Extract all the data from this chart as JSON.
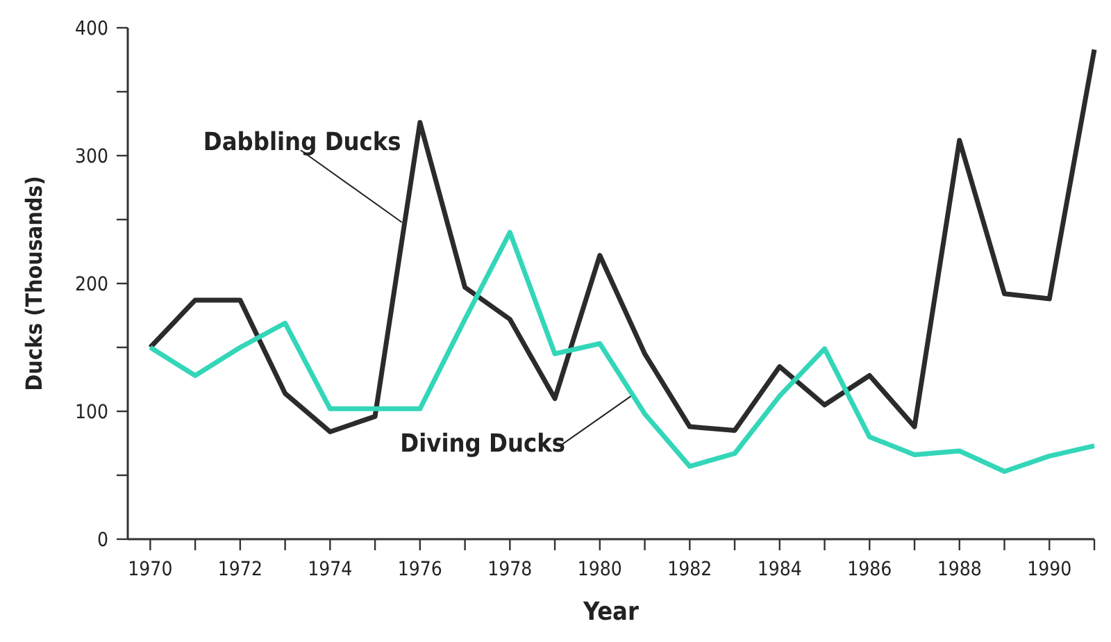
{
  "chart_data": {
    "type": "line",
    "xlabel": "Year",
    "ylabel": "Ducks (Thousands)",
    "x": [
      1970,
      1971,
      1972,
      1973,
      1974,
      1975,
      1976,
      1977,
      1978,
      1979,
      1980,
      1981,
      1982,
      1983,
      1984,
      1985,
      1986,
      1987,
      1988,
      1989,
      1990,
      1991
    ],
    "series": [
      {
        "name": "Dabbling Ducks",
        "color": "#2b2b2b",
        "values": [
          150,
          187,
          187,
          114,
          84,
          96,
          326,
          197,
          172,
          110,
          222,
          145,
          88,
          85,
          135,
          105,
          128,
          88,
          312,
          192,
          188,
          383
        ]
      },
      {
        "name": "Diving Ducks",
        "color": "#33d6b8",
        "values": [
          150,
          128,
          150,
          169,
          102,
          102,
          102,
          172,
          240,
          145,
          153,
          98,
          57,
          67,
          112,
          149,
          80,
          66,
          69,
          53,
          65,
          73
        ]
      }
    ],
    "xlim": [
      1969.5,
      1991
    ],
    "xticks": [
      1970,
      {
        "value": 1971,
        "label": null
      },
      1972,
      {
        "value": 1973,
        "label": null
      },
      1974,
      {
        "value": 1975,
        "label": null
      },
      1976,
      {
        "value": 1977,
        "label": null
      },
      1978,
      {
        "value": 1979,
        "label": null
      },
      1980,
      {
        "value": 1981,
        "label": null
      },
      1982,
      {
        "value": 1983,
        "label": null
      },
      1984,
      {
        "value": 1985,
        "label": null
      },
      1986,
      {
        "value": 1987,
        "label": null
      },
      1988,
      {
        "value": 1989,
        "label": null
      },
      1990,
      {
        "value": 1991,
        "label": null
      }
    ],
    "ylim": [
      0,
      400
    ],
    "yticks": [
      0,
      {
        "value": 50,
        "label": null
      },
      100,
      {
        "value": 150,
        "label": null
      },
      200,
      {
        "value": 250,
        "label": null
      },
      300,
      {
        "value": 350,
        "label": null
      },
      400
    ],
    "grid": false,
    "marker": "none",
    "line_style": "solid"
  }
}
